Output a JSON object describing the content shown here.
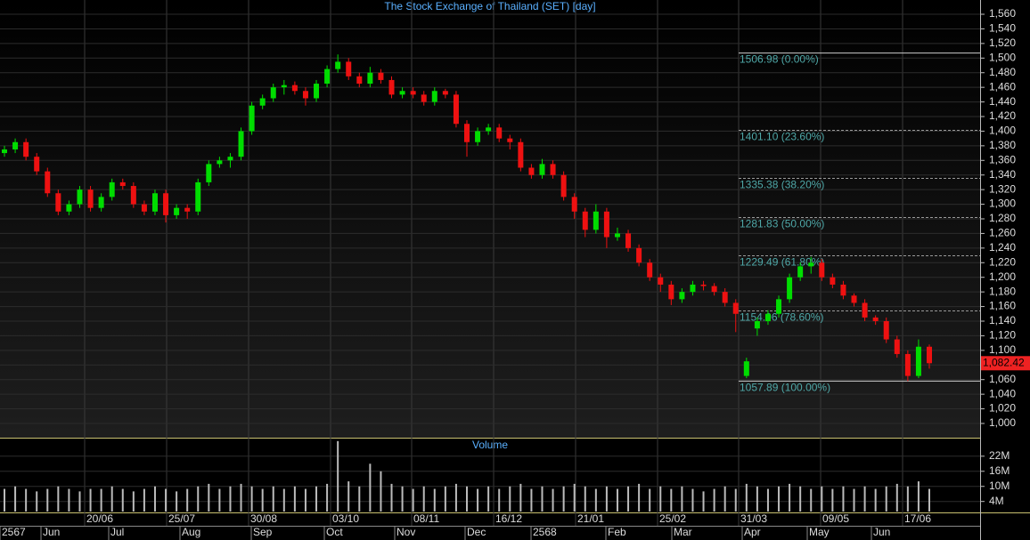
{
  "chart_data": {
    "type": "candlestick",
    "title": "The Stock Exchange of Thailand (SET) [day]",
    "colors": {
      "up": "#00dd00",
      "down": "#ee1111"
    },
    "open": [
      1370,
      1375,
      1385,
      1365,
      1345,
      1315,
      1290,
      1300,
      1320,
      1295,
      1310,
      1330,
      1325,
      1300,
      1290,
      1315,
      1285,
      1295,
      1290,
      1330,
      1355,
      1360,
      1365,
      1400,
      1435,
      1445,
      1460,
      1463,
      1455,
      1445,
      1465,
      1485,
      1495,
      1475,
      1465,
      1480,
      1470,
      1450,
      1455,
      1450,
      1440,
      1455,
      1450,
      1410,
      1385,
      1400,
      1405,
      1390,
      1385,
      1350,
      1340,
      1355,
      1340,
      1310,
      1290,
      1265,
      1290,
      1255,
      1260,
      1240,
      1220,
      1200,
      1190,
      1170,
      1180,
      1190,
      1188,
      1180,
      1165,
      1065,
      1130,
      1140,
      1150,
      1170,
      1200,
      1215,
      1220,
      1200,
      1190,
      1175,
      1165,
      1145,
      1140,
      1115,
      1095,
      1065,
      1105
    ],
    "high": [
      1380,
      1390,
      1390,
      1370,
      1350,
      1320,
      1305,
      1325,
      1325,
      1315,
      1335,
      1335,
      1330,
      1305,
      1320,
      1320,
      1300,
      1300,
      1335,
      1360,
      1365,
      1370,
      1405,
      1440,
      1450,
      1465,
      1470,
      1468,
      1460,
      1470,
      1490,
      1505,
      1500,
      1480,
      1488,
      1485,
      1475,
      1460,
      1460,
      1455,
      1460,
      1458,
      1455,
      1415,
      1405,
      1410,
      1410,
      1395,
      1390,
      1355,
      1362,
      1360,
      1345,
      1315,
      1295,
      1300,
      1295,
      1268,
      1265,
      1245,
      1225,
      1205,
      1195,
      1185,
      1195,
      1195,
      1192,
      1185,
      1170,
      1090,
      1145,
      1155,
      1175,
      1205,
      1220,
      1228,
      1225,
      1205,
      1195,
      1178,
      1170,
      1148,
      1145,
      1120,
      1100,
      1115,
      1108
    ],
    "low": [
      1365,
      1370,
      1360,
      1340,
      1310,
      1285,
      1285,
      1295,
      1290,
      1290,
      1305,
      1320,
      1295,
      1285,
      1285,
      1275,
      1280,
      1280,
      1285,
      1325,
      1350,
      1350,
      1360,
      1395,
      1430,
      1440,
      1450,
      1450,
      1435,
      1440,
      1460,
      1480,
      1470,
      1460,
      1460,
      1465,
      1445,
      1445,
      1445,
      1435,
      1435,
      1445,
      1405,
      1365,
      1380,
      1395,
      1385,
      1375,
      1345,
      1335,
      1335,
      1335,
      1305,
      1280,
      1255,
      1260,
      1240,
      1250,
      1235,
      1215,
      1195,
      1180,
      1162,
      1165,
      1175,
      1182,
      1175,
      1160,
      1125,
      1062,
      1120,
      1135,
      1145,
      1165,
      1195,
      1205,
      1195,
      1185,
      1170,
      1160,
      1140,
      1135,
      1110,
      1090,
      1058,
      1062,
      1075
    ],
    "close": [
      1375,
      1385,
      1365,
      1345,
      1315,
      1290,
      1300,
      1320,
      1295,
      1310,
      1330,
      1325,
      1300,
      1290,
      1315,
      1285,
      1295,
      1290,
      1330,
      1355,
      1360,
      1365,
      1400,
      1435,
      1445,
      1460,
      1463,
      1455,
      1445,
      1465,
      1485,
      1495,
      1475,
      1465,
      1480,
      1470,
      1450,
      1455,
      1450,
      1440,
      1455,
      1450,
      1410,
      1385,
      1400,
      1405,
      1390,
      1385,
      1350,
      1340,
      1355,
      1340,
      1310,
      1290,
      1265,
      1290,
      1255,
      1260,
      1240,
      1220,
      1200,
      1190,
      1170,
      1180,
      1190,
      1188,
      1180,
      1165,
      1150,
      1085,
      1140,
      1150,
      1170,
      1200,
      1215,
      1220,
      1200,
      1190,
      1175,
      1165,
      1145,
      1140,
      1115,
      1095,
      1065,
      1105,
      1082.42
    ],
    "ylim": [
      980.5,
      1579.5
    ],
    "yticks": [
      {
        "value": 1000,
        "label": "1,000"
      },
      {
        "value": 1020,
        "label": "1,020"
      },
      {
        "value": 1040,
        "label": "1,040"
      },
      {
        "value": 1060,
        "label": "1,060"
      },
      {
        "value": 1080,
        "label": "1,080"
      },
      {
        "value": 1100,
        "label": "1,100"
      },
      {
        "value": 1120,
        "label": "1,120"
      },
      {
        "value": 1140,
        "label": "1,140"
      },
      {
        "value": 1160,
        "label": "1,160"
      },
      {
        "value": 1180,
        "label": "1,180"
      },
      {
        "value": 1200,
        "label": "1,200"
      },
      {
        "value": 1220,
        "label": "1,220"
      },
      {
        "value": 1240,
        "label": "1,240"
      },
      {
        "value": 1260,
        "label": "1,260"
      },
      {
        "value": 1280,
        "label": "1,280"
      },
      {
        "value": 1300,
        "label": "1,300"
      },
      {
        "value": 1320,
        "label": "1,320"
      },
      {
        "value": 1340,
        "label": "1,340"
      },
      {
        "value": 1360,
        "label": "1,360"
      },
      {
        "value": 1380,
        "label": "1,380"
      },
      {
        "value": 1400,
        "label": "1,400"
      },
      {
        "value": 1420,
        "label": "1,420"
      },
      {
        "value": 1440,
        "label": "1,440"
      },
      {
        "value": 1460,
        "label": "1,460"
      },
      {
        "value": 1480,
        "label": "1,480"
      },
      {
        "value": 1500,
        "label": "1,500"
      },
      {
        "value": 1520,
        "label": "1,520"
      },
      {
        "value": 1540,
        "label": "1,540"
      },
      {
        "value": 1560,
        "label": "1,560"
      }
    ],
    "fibonacci": [
      {
        "value": 1506.98,
        "label": "1506.98 (0.00%)"
      },
      {
        "value": 1401.1,
        "label": "1401.10 (23.60%)"
      },
      {
        "value": 1335.38,
        "label": "1335.38 (38.20%)"
      },
      {
        "value": 1281.83,
        "label": "1281.83 (50.00%)"
      },
      {
        "value": 1229.49,
        "label": "1229.49 (61.80%)"
      },
      {
        "value": 1154.06,
        "label": "1154.06 (78.60%)"
      },
      {
        "value": 1057.89,
        "label": "1057.89 (100.00%)"
      }
    ],
    "last_price": {
      "value": 1082.42,
      "label": "1,082.42"
    },
    "volume": {
      "type": "bar",
      "title": "Volume",
      "color": "#bbbbbb",
      "values": [
        9,
        10,
        9,
        8,
        9,
        10,
        9,
        8,
        9,
        9,
        10,
        9,
        8,
        9,
        10,
        9,
        8,
        9,
        10,
        11,
        9,
        10,
        11,
        10,
        9,
        10,
        9,
        10,
        9,
        10,
        11,
        28,
        12,
        10,
        19,
        16,
        11,
        10,
        9,
        10,
        9,
        10,
        11,
        10,
        9,
        10,
        9,
        10,
        11,
        9,
        10,
        9,
        10,
        11,
        10,
        9,
        10,
        9,
        10,
        11,
        9,
        10,
        9,
        10,
        9,
        8,
        9,
        10,
        9,
        11,
        10,
        9,
        10,
        11,
        10,
        9,
        10,
        9,
        10,
        9,
        10,
        9,
        10,
        11,
        10,
        12,
        9
      ],
      "ylim": [
        0,
        29
      ],
      "yticks": [
        {
          "value": 4,
          "label": "4M"
        },
        {
          "value": 10,
          "label": "10M"
        },
        {
          "value": 16,
          "label": "16M"
        },
        {
          "value": 22,
          "label": "22M"
        }
      ]
    },
    "date_labels": [
      "20/06",
      "25/07",
      "30/08",
      "03/10",
      "08/11",
      "16/12",
      "21/01",
      "25/02",
      "31/03",
      "09/05",
      "17/06"
    ],
    "month_labels": [
      "2567",
      "Jun",
      "Jul",
      "Aug",
      "Sep",
      "Oct",
      "Nov",
      "Dec",
      "2568",
      "Feb",
      "Mar",
      "Apr",
      "May",
      "Jun"
    ]
  }
}
